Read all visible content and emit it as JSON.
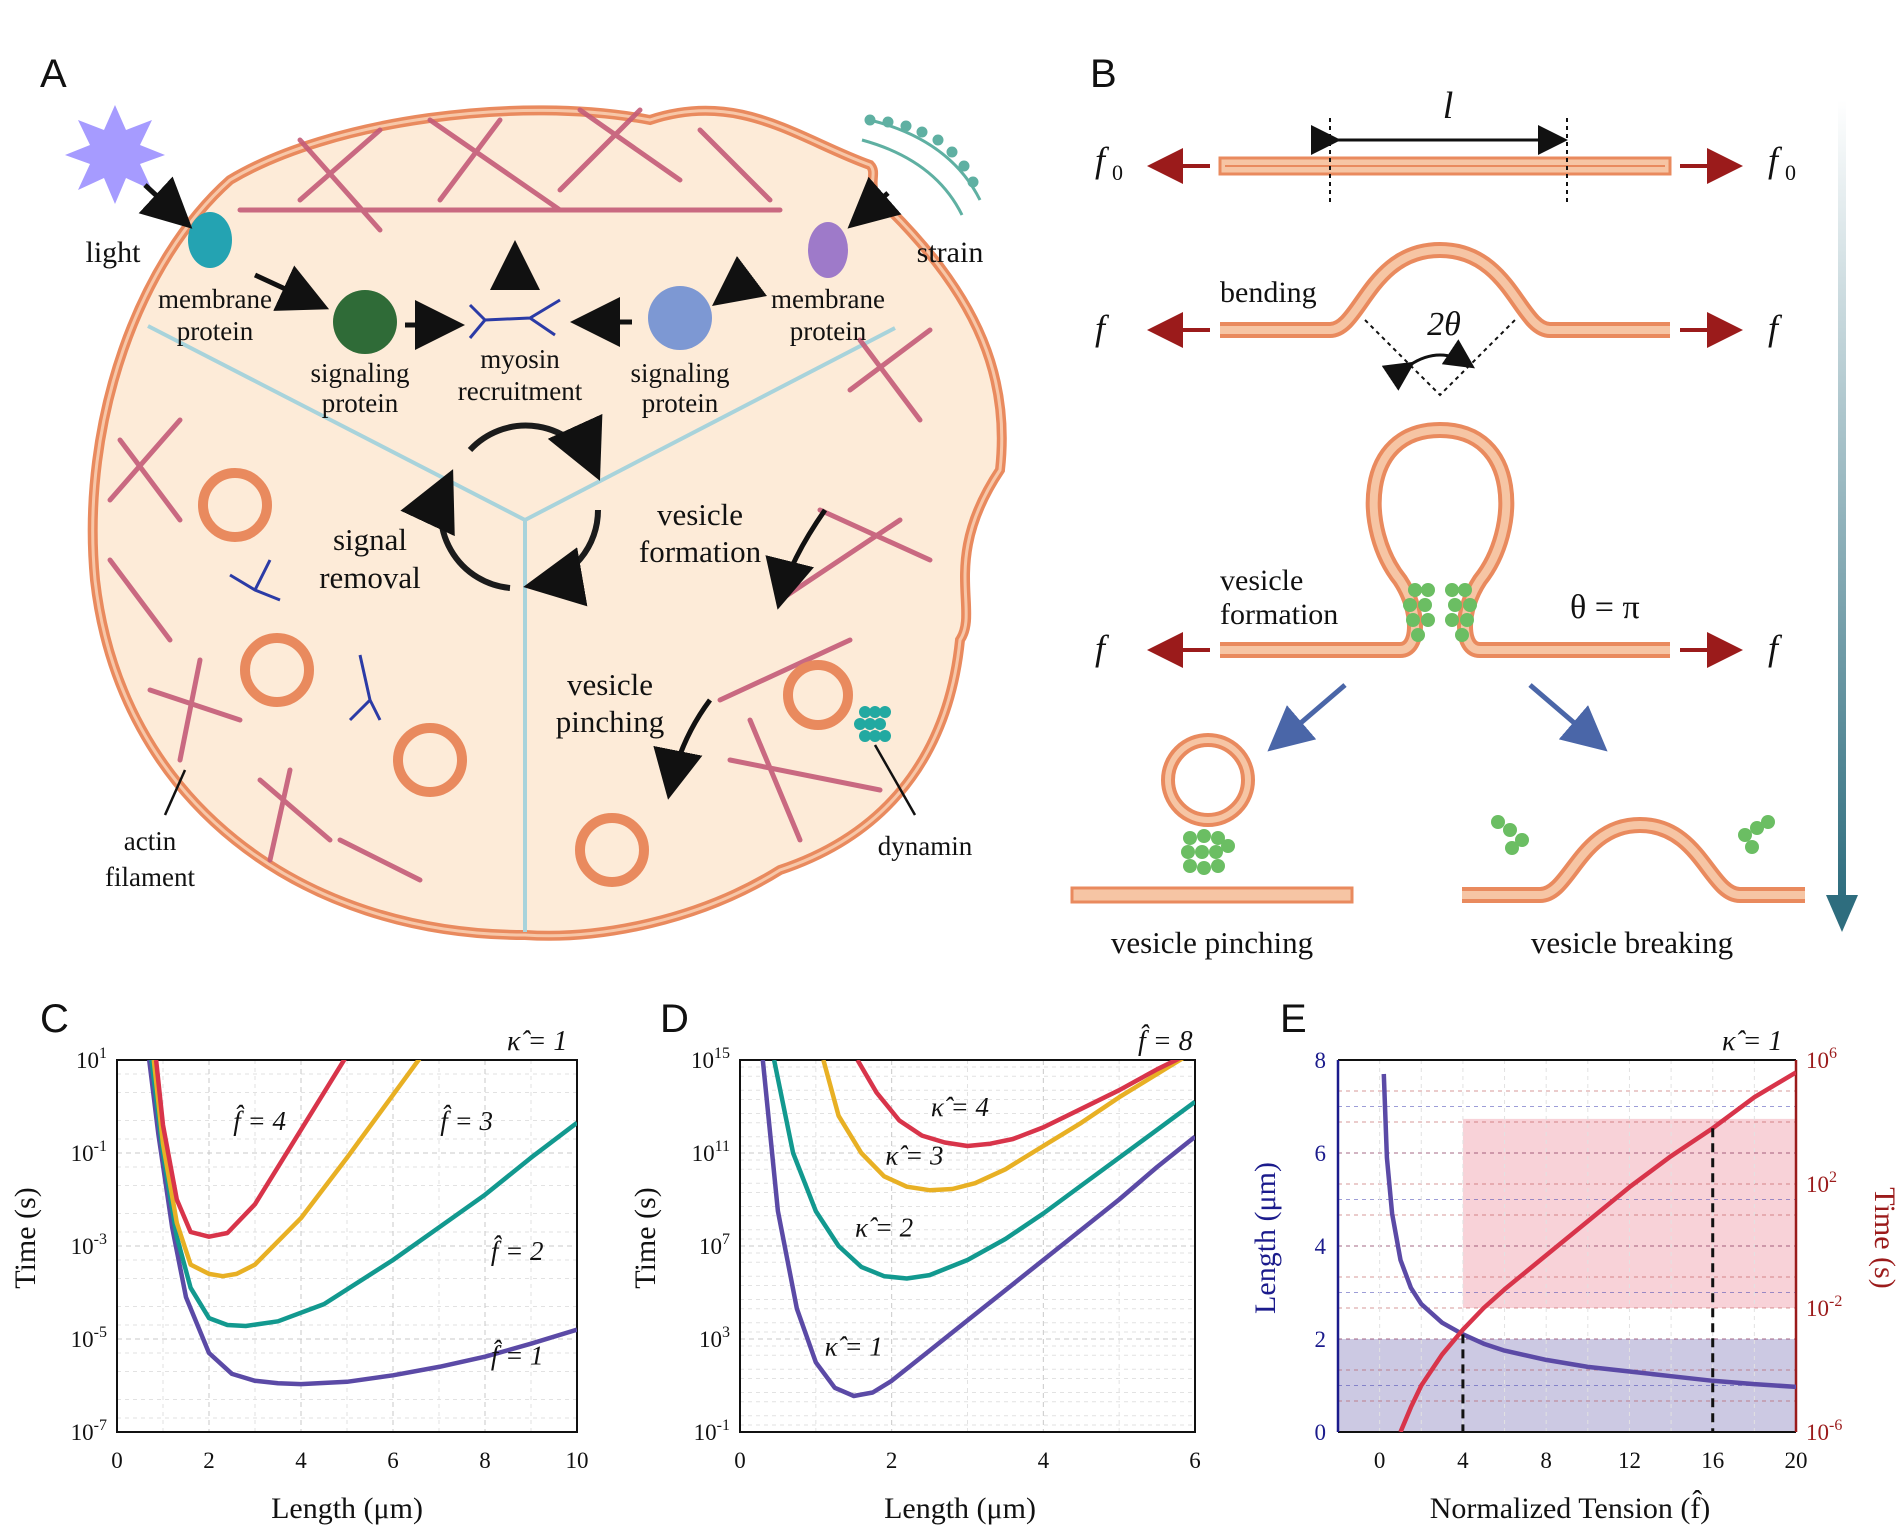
{
  "panels": {
    "A": "A",
    "B": "B",
    "C": "C",
    "D": "D",
    "E": "E"
  },
  "panel_a": {
    "light": "light",
    "strain": "strain",
    "membrane_protein_left_1": "membrane",
    "membrane_protein_left_2": "protein",
    "membrane_protein_right_1": "membrane",
    "membrane_protein_right_2": "protein",
    "signaling_left_1": "signaling",
    "signaling_left_2": "protein",
    "signaling_right_1": "signaling",
    "signaling_right_2": "protein",
    "myosin_1": "myosin",
    "myosin_2": "recruitment",
    "signal_removal_1": "signal",
    "signal_removal_2": "removal",
    "vesicle_formation_1": "vesicle",
    "vesicle_formation_2": "formation",
    "vesicle_pinching_1": "vesicle",
    "vesicle_pinching_2": "pinching",
    "actin_1": "actin",
    "actin_2": "filament",
    "dynamin": "dynamin"
  },
  "panel_b": {
    "length_symbol": "l",
    "f0_left": "f",
    "f0_left_sub": "0",
    "f0_right": "f",
    "f0_right_sub": "0",
    "f": "f",
    "bending": "bending",
    "angle": "2θ",
    "vesicle_formation_1": "vesicle",
    "vesicle_formation_2": "formation",
    "theta_eq": "θ = π",
    "vesicle_pinching": "vesicle pinching",
    "vesicle_breaking": "vesicle breaking"
  },
  "colors": {
    "purple": "#5B4AA6",
    "teal": "#12998F",
    "yellow": "#E8B024",
    "red": "#D8344A",
    "membrane": "#E98A5E",
    "cell": "#FDEBD8",
    "navy": "#1B1B8C",
    "darkred": "#9B1B1B",
    "arrowTeal": "#2E6D7E"
  },
  "chart_data": [
    {
      "panel": "C",
      "type": "line",
      "annotation_top": "κ̂ = 1",
      "xlabel": "Length (μm)",
      "ylabel": "Time (s)",
      "xlim": [
        0,
        10
      ],
      "ylim_log10": [
        -7,
        1
      ],
      "y_scale": "log",
      "xticks": [
        "0",
        "2",
        "4",
        "6",
        "8",
        "10"
      ],
      "yticks": [
        {
          "base": "10",
          "exp": "1"
        },
        {
          "base": "10",
          "exp": "-1"
        },
        {
          "base": "10",
          "exp": "-3"
        },
        {
          "base": "10",
          "exp": "-5"
        },
        {
          "base": "10",
          "exp": "-7"
        }
      ],
      "grid": true,
      "series": [
        {
          "name": "f̂ = 1",
          "color": "#5B4AA6",
          "x": [
            0.7,
            0.9,
            1.2,
            1.5,
            2.0,
            2.5,
            3.0,
            3.5,
            4.0,
            5.0,
            6.0,
            7.0,
            8.0,
            9.0,
            10.0
          ],
          "log10_y": [
            1.0,
            -0.6,
            -2.6,
            -4.1,
            -5.3,
            -5.75,
            -5.9,
            -5.95,
            -5.97,
            -5.92,
            -5.78,
            -5.6,
            -5.38,
            -5.1,
            -4.8
          ]
        },
        {
          "name": "f̂ = 2",
          "color": "#12998F",
          "x": [
            0.75,
            1.0,
            1.3,
            1.6,
            2.0,
            2.4,
            2.8,
            3.5,
            4.5,
            6.0,
            7.0,
            8.0,
            9.0,
            10.0
          ],
          "log10_y": [
            1.0,
            -1.0,
            -2.8,
            -3.9,
            -4.55,
            -4.7,
            -4.72,
            -4.62,
            -4.25,
            -3.3,
            -2.6,
            -1.9,
            -1.1,
            -0.35
          ]
        },
        {
          "name": "f̂ = 3",
          "color": "#E8B024",
          "x": [
            0.8,
            1.0,
            1.3,
            1.6,
            2.0,
            2.3,
            2.6,
            3.0,
            4.0,
            5.0,
            6.0,
            7.0,
            7.5
          ],
          "log10_y": [
            1.0,
            -0.8,
            -2.5,
            -3.4,
            -3.6,
            -3.65,
            -3.6,
            -3.4,
            -2.4,
            -1.1,
            0.25,
            1.6,
            2.3
          ]
        },
        {
          "name": "f̂ = 4",
          "color": "#D8344A",
          "x": [
            0.85,
            1.0,
            1.3,
            1.6,
            2.0,
            2.4,
            3.0,
            4.0,
            5.0,
            5.5
          ],
          "log10_y": [
            1.0,
            -0.4,
            -2.0,
            -2.7,
            -2.8,
            -2.72,
            -2.1,
            -0.5,
            1.1,
            2.0
          ]
        }
      ],
      "labels": [
        {
          "text": "f̂ = 1",
          "x": 8.7,
          "y": -5.55
        },
        {
          "text": "f̂ = 2",
          "x": 8.7,
          "y": -3.3
        },
        {
          "text": "f̂ = 3",
          "x": 7.6,
          "y": -0.5
        },
        {
          "text": "f̂ = 4",
          "x": 3.1,
          "y": -0.5
        }
      ]
    },
    {
      "panel": "D",
      "type": "line",
      "annotation_top": "f̂ = 8",
      "xlabel": "Length (μm)",
      "ylabel": "Time (s)",
      "xlim": [
        0,
        6
      ],
      "ylim_log10": [
        -1,
        15
      ],
      "y_scale": "log",
      "xticks": [
        "0",
        "2",
        "4",
        "6"
      ],
      "yticks": [
        {
          "base": "10",
          "exp": "15"
        },
        {
          "base": "10",
          "exp": "11"
        },
        {
          "base": "10",
          "exp": "7"
        },
        {
          "base": "10",
          "exp": "3"
        },
        {
          "base": "10",
          "exp": "-1"
        }
      ],
      "grid": true,
      "series": [
        {
          "name": "κ̂ = 1",
          "color": "#5B4AA6",
          "x": [
            0.3,
            0.5,
            0.75,
            1.0,
            1.25,
            1.5,
            1.75,
            2.0,
            2.5,
            3.0,
            3.5,
            4.0,
            4.5,
            5.0,
            5.5,
            6.0
          ],
          "log10_y": [
            15,
            8.5,
            4.3,
            2.0,
            0.9,
            0.55,
            0.7,
            1.2,
            2.5,
            3.8,
            5.1,
            6.4,
            7.7,
            9.0,
            10.4,
            11.7
          ]
        },
        {
          "name": "κ̂ = 2",
          "color": "#12998F",
          "x": [
            0.45,
            0.7,
            1.0,
            1.3,
            1.6,
            1.9,
            2.2,
            2.5,
            3.0,
            3.5,
            4.0,
            4.5,
            5.0,
            5.5,
            6.0
          ],
          "log10_y": [
            15,
            11.0,
            8.5,
            7.0,
            6.1,
            5.7,
            5.6,
            5.75,
            6.4,
            7.3,
            8.4,
            9.6,
            10.8,
            12.0,
            13.2
          ]
        },
        {
          "name": "κ̂ = 3",
          "color": "#E8B024",
          "x": [
            1.1,
            1.3,
            1.6,
            1.9,
            2.2,
            2.5,
            2.8,
            3.1,
            3.5,
            4.0,
            4.5,
            5.0,
            5.5,
            6.0
          ],
          "log10_y": [
            15,
            12.6,
            11.0,
            10.0,
            9.55,
            9.4,
            9.45,
            9.7,
            10.3,
            11.3,
            12.3,
            13.4,
            14.4,
            15.4
          ]
        },
        {
          "name": "κ̂ = 4",
          "color": "#D8344A",
          "x": [
            1.55,
            1.8,
            2.1,
            2.4,
            2.7,
            3.0,
            3.3,
            3.6,
            4.0,
            4.5,
            5.0,
            5.5,
            6.0
          ],
          "log10_y": [
            15,
            13.6,
            12.4,
            11.75,
            11.45,
            11.3,
            11.4,
            11.6,
            12.1,
            12.9,
            13.7,
            14.6,
            15.4
          ]
        }
      ],
      "labels": [
        {
          "text": "κ̂ = 1",
          "x": 1.5,
          "y": 2.3
        },
        {
          "text": "κ̂ = 2",
          "x": 1.9,
          "y": 7.4
        },
        {
          "text": "κ̂ = 3",
          "x": 2.3,
          "y": 10.5
        },
        {
          "text": "κ̂ = 4",
          "x": 2.9,
          "y": 12.6
        }
      ]
    },
    {
      "panel": "E",
      "type": "line",
      "annotation_top": "κ̂ = 1",
      "xlabel": "Normalized Tension (f̂)",
      "ylabel_left": "Length (μm)",
      "ylabel_right": "Time (s)",
      "xlim": [
        -2,
        20
      ],
      "ylim_left": [
        0,
        8
      ],
      "ylim_right_log10": [
        -6,
        6
      ],
      "xticks": [
        "0",
        "4",
        "8",
        "12",
        "16",
        "20"
      ],
      "yticks_left": [
        "0",
        "2",
        "4",
        "6",
        "8"
      ],
      "yticks_right": [
        {
          "base": "10",
          "exp": "6"
        },
        {
          "base": "10",
          "exp": "2"
        },
        {
          "base": "10",
          "exp": "-2"
        },
        {
          "base": "10",
          "exp": "-6"
        }
      ],
      "series": [
        {
          "name": "Length",
          "color": "#5B4AA6",
          "axis": "left",
          "x": [
            0.2,
            0.35,
            0.6,
            1.0,
            1.5,
            2.0,
            3.0,
            4.0,
            5.0,
            6.0,
            8.0,
            10.0,
            12.0,
            14.0,
            16.0,
            18.0,
            20.0
          ],
          "y": [
            7.7,
            5.9,
            4.7,
            3.7,
            3.1,
            2.75,
            2.35,
            2.1,
            1.9,
            1.75,
            1.55,
            1.4,
            1.3,
            1.2,
            1.1,
            1.03,
            0.97
          ]
        },
        {
          "name": "Time",
          "color": "#D8344A",
          "axis": "right",
          "x": [
            1.0,
            1.5,
            2.0,
            3.0,
            4.0,
            5.0,
            6.0,
            8.0,
            10.0,
            12.0,
            14.0,
            16.0,
            18.0,
            20.0
          ],
          "log10_y": [
            -6.0,
            -5.2,
            -4.5,
            -3.5,
            -2.7,
            -2.0,
            -1.4,
            -0.3,
            0.8,
            1.9,
            2.9,
            3.8,
            4.8,
            5.6
          ]
        }
      ],
      "shaded": [
        {
          "axis": "left",
          "x": [
            -2,
            20
          ],
          "y": [
            0,
            2
          ],
          "color": "#8E88C2"
        },
        {
          "axis": "right",
          "x": [
            4,
            20
          ],
          "log10_y": [
            -2,
            4.1
          ],
          "color": "#F2A5B1"
        }
      ],
      "markers": [
        {
          "x": 4
        },
        {
          "x": 16
        }
      ]
    }
  ]
}
